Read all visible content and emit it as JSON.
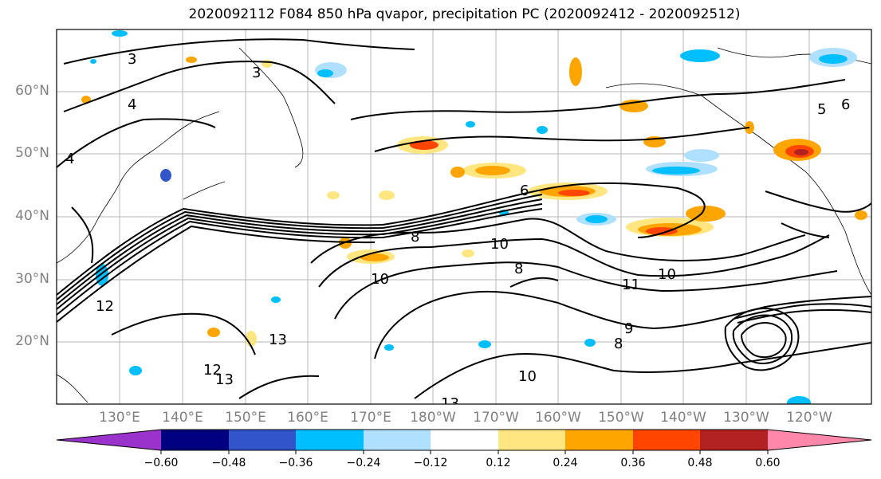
{
  "title": "2020092112 F084 850 hPa qvapor, precipitation PC (2020092412 - 2020092512)",
  "lat_labels": [
    "60°N",
    "50°N",
    "40°N",
    "30°N",
    "20°N"
  ],
  "lon_labels": [
    "130°E",
    "140°E",
    "150°E",
    "160°E",
    "170°E",
    "180°W",
    "170°W",
    "160°W",
    "150°W",
    "140°W",
    "130°W",
    "120°W"
  ],
  "colorbar": {
    "ticks": [
      "−0.60",
      "−0.48",
      "−0.36",
      "−0.24",
      "−0.12",
      "0.12",
      "0.24",
      "0.36",
      "0.48",
      "0.60"
    ],
    "colors": [
      "#9933cc",
      "#000080",
      "#3355cc",
      "#00bfff",
      "#b0e0ff",
      "#ffffff",
      "#ffe680",
      "#ffa500",
      "#ff4500",
      "#b22222",
      "#ff88aa"
    ]
  },
  "contour_labels": [
    "3",
    "3",
    "4",
    "4",
    "6",
    "5",
    "6",
    "8",
    "8",
    "10",
    "10",
    "10",
    "12",
    "13",
    "13",
    "12",
    "11",
    "10",
    "13",
    "9",
    "8"
  ]
}
